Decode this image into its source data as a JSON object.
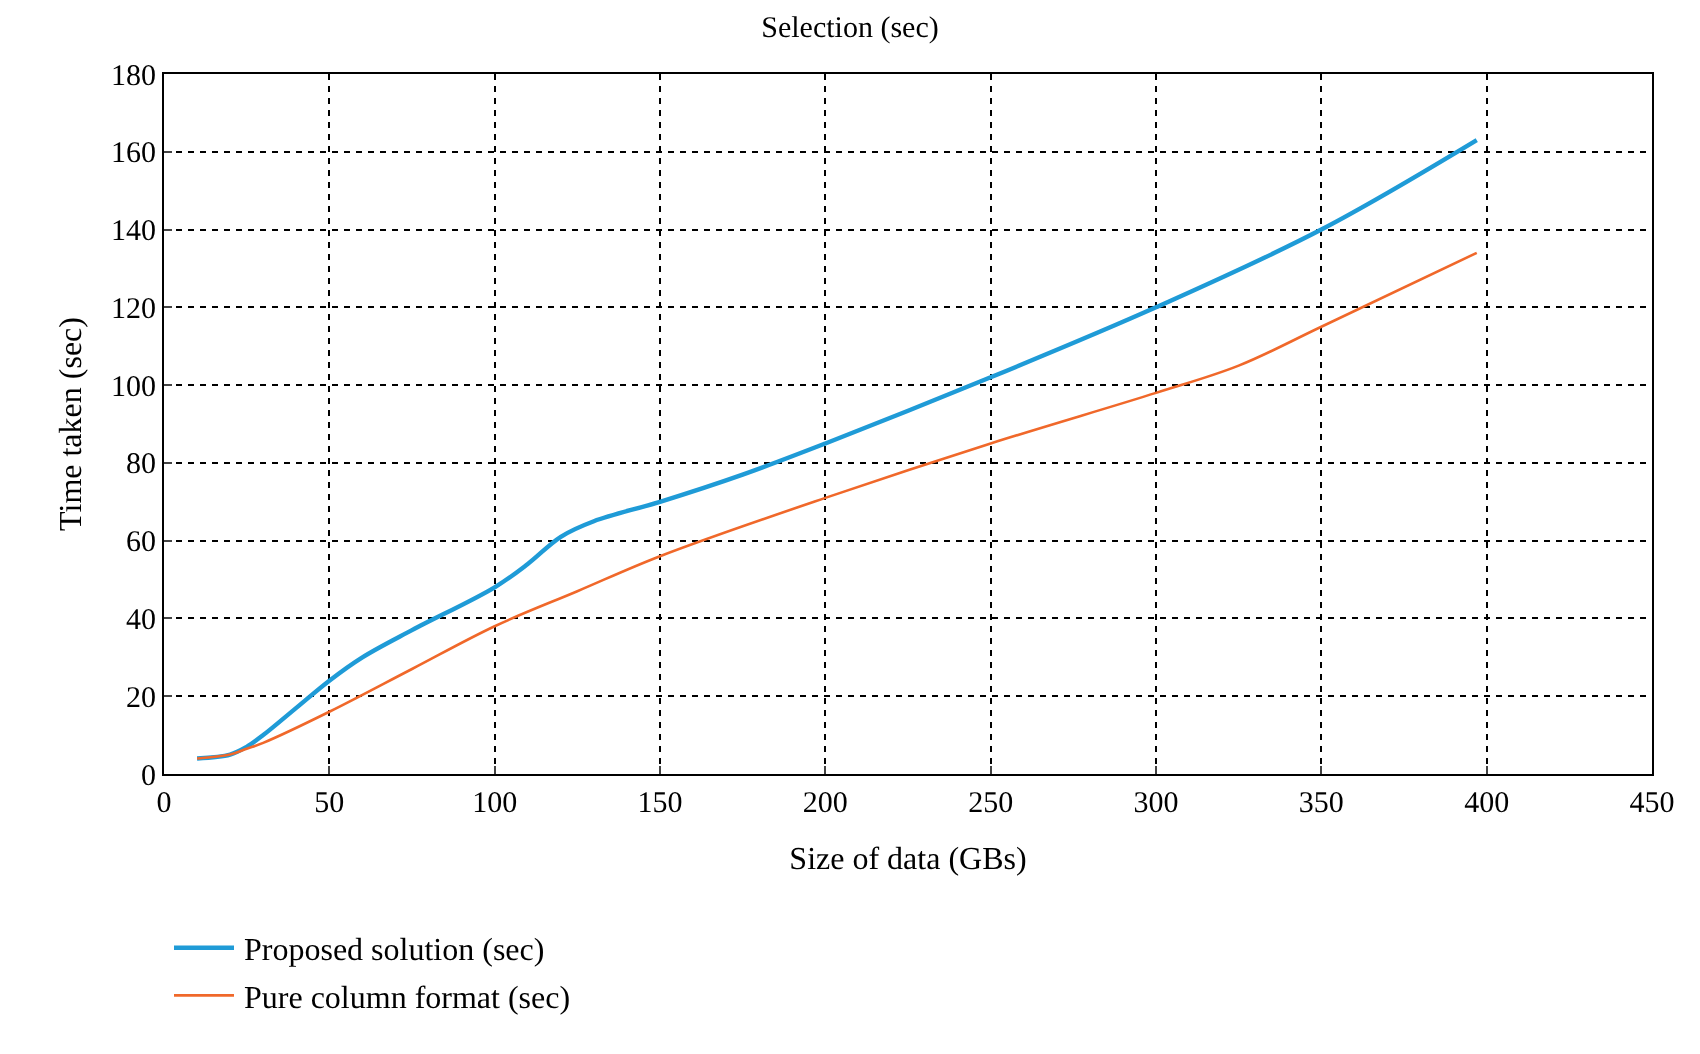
{
  "chart_data": {
    "type": "line",
    "title": "Selection (sec)",
    "xlabel": "Size of data (GBs)",
    "ylabel": "Time taken (sec)",
    "xlim": [
      0,
      450
    ],
    "xticks": [
      0,
      50,
      100,
      150,
      200,
      250,
      300,
      350,
      400,
      450
    ],
    "ylim": [
      0,
      180
    ],
    "yticks": [
      0,
      20,
      40,
      60,
      80,
      100,
      120,
      140,
      160,
      180
    ],
    "grid": true,
    "legend": "bottom left",
    "marker": "none",
    "line_style": "solid",
    "series": [
      {
        "name": "Proposed solution (sec)",
        "color": "#1f9bd7",
        "x": [
          10,
          20,
          25,
          30,
          40,
          50,
          60,
          75,
          100,
          110,
          120,
          130,
          150,
          175,
          200,
          250,
          300,
          350,
          397
        ],
        "values": [
          4,
          5,
          7,
          10,
          17,
          24,
          30,
          37,
          48,
          54,
          61,
          65,
          70,
          77,
          85,
          102,
          120,
          140,
          163
        ]
      },
      {
        "name": "Pure column format (sec)",
        "color": "#f0682a",
        "x": [
          10,
          20,
          25,
          30,
          50,
          75,
          100,
          125,
          150,
          200,
          250,
          300,
          325,
          350,
          397
        ],
        "values": [
          4,
          5,
          6.5,
          8,
          16,
          27,
          38,
          47,
          56,
          71,
          85,
          98,
          105,
          115,
          134
        ]
      }
    ]
  }
}
